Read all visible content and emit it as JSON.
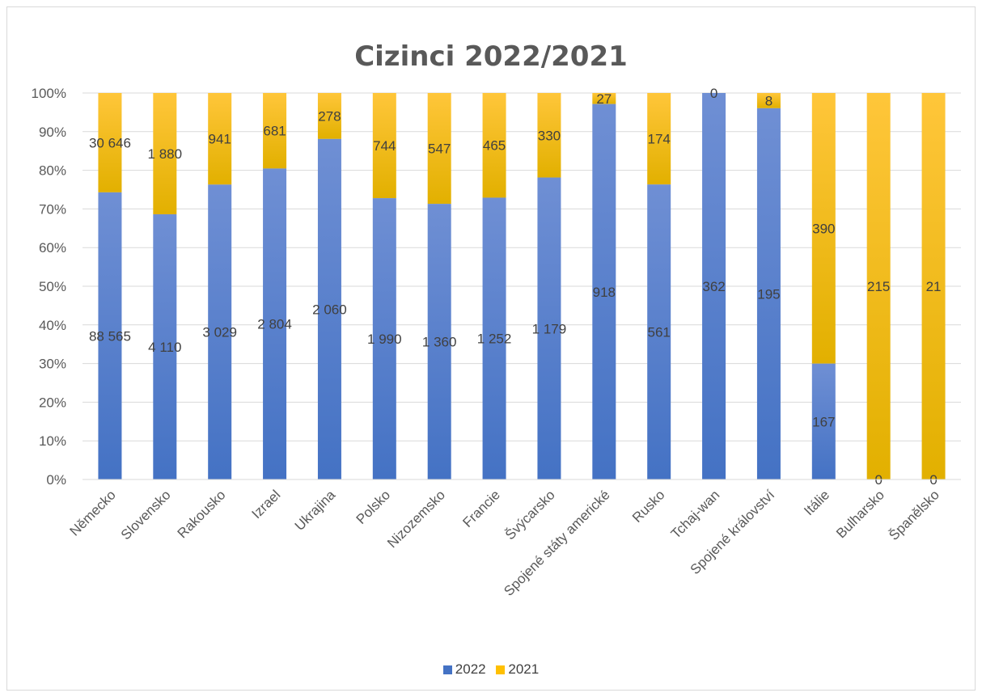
{
  "chart_data": {
    "type": "bar",
    "stacked": "percent",
    "title": "Cizinci 2022/2021",
    "xlabel": "",
    "ylabel": "",
    "ylim": [
      0,
      100
    ],
    "yticks": [
      "0%",
      "10%",
      "20%",
      "30%",
      "40%",
      "50%",
      "60%",
      "70%",
      "80%",
      "90%",
      "100%"
    ],
    "grid": true,
    "legend_position": "bottom",
    "categories": [
      "Německo",
      "Slovensko",
      "Rakousko",
      "Izrael",
      "Ukrajina",
      "Polsko",
      "Nizozemsko",
      "Francie",
      "Švýcarsko",
      "Spojené státy americké",
      "Rusko",
      "Tchaj-wan",
      "Spojené království",
      "Itálie",
      "Bulharsko",
      "Španělsko"
    ],
    "series": [
      {
        "name": "2022",
        "color": "#4472C4",
        "values": [
          88565,
          4110,
          3029,
          2804,
          2060,
          1990,
          1360,
          1252,
          1179,
          918,
          561,
          362,
          195,
          167,
          0,
          0
        ],
        "labels": [
          "88 565",
          "4 110",
          "3 029",
          "2 804",
          "2 060",
          "1 990",
          "1 360",
          "1 252",
          "1 179",
          "918",
          "561",
          "362",
          "195",
          "167",
          "0",
          "0"
        ]
      },
      {
        "name": "2021",
        "color": "#FFC000",
        "values": [
          30646,
          1880,
          941,
          681,
          278,
          744,
          547,
          465,
          330,
          27,
          174,
          0,
          8,
          390,
          215,
          21
        ],
        "labels": [
          "30 646",
          "1 880",
          "941",
          "681",
          "278",
          "744",
          "547",
          "465",
          "330",
          "27",
          "174",
          "0",
          "8",
          "390",
          "215",
          "21"
        ]
      }
    ]
  }
}
